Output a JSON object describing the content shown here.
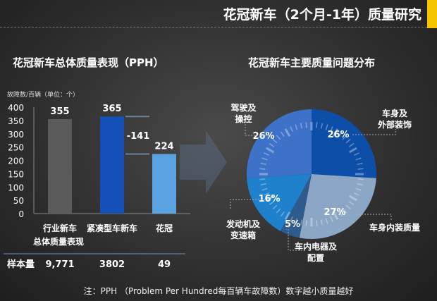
{
  "header": {
    "title": "花冠新车（2个月-1年）质量研究",
    "accent_color": "#f5c400"
  },
  "left_title": "花冠新车总体质量表现（PPH）",
  "right_title": "花冠新车主要质量问题分布",
  "chart_data": [
    {
      "type": "bar",
      "ylabel": "故障数/百辆（单位：个）",
      "ylim": [
        0,
        400
      ],
      "yticks": [
        0,
        50,
        100,
        150,
        200,
        250,
        300,
        350,
        400
      ],
      "categories": [
        "行业新车总体质量表现",
        "紧凑型车新车",
        "花冠"
      ],
      "category_lines": [
        [
          "行业新车",
          "总体质量表现"
        ],
        [
          "紧凑型车新车"
        ],
        [
          "花冠"
        ]
      ],
      "values": [
        355,
        365,
        224
      ],
      "data_labels": [
        "355",
        "365",
        "224"
      ],
      "colors": [
        "#5a5a5a",
        "#1550b8",
        "#5ba3e0"
      ],
      "difference_label": "-141",
      "grid": false,
      "sample_size": {
        "label": "样本量",
        "values": [
          "9,771",
          "3802",
          "49"
        ]
      }
    },
    {
      "type": "pie",
      "slices": [
        {
          "label": "车身及外部装饰",
          "value": 26,
          "display": "26%",
          "color": "#0d4ea8"
        },
        {
          "label": "车身内装质量",
          "value": 27,
          "display": "27%",
          "color": "#8ca6c6"
        },
        {
          "label": "车内电器及配置",
          "value": 5,
          "display": "5%",
          "color": "#2f5b8c"
        },
        {
          "label": "发动机及变速箱",
          "value": 16,
          "display": "16%",
          "color": "#1f80cc"
        },
        {
          "label": "驾驶及操控",
          "value": 26,
          "display": "26%",
          "color": "#3e72c8"
        }
      ],
      "label_lines": [
        [
          "车身及",
          "外部装饰"
        ],
        [
          "车身内装质量"
        ],
        [
          "车内电器及",
          "配置"
        ],
        [
          "发动机及",
          "变速箱"
        ],
        [
          "驾驶及",
          "操控"
        ]
      ]
    }
  ],
  "note": "注：PPH （Problem Per Hundred每百辆车故障数）数字越小质量越好"
}
